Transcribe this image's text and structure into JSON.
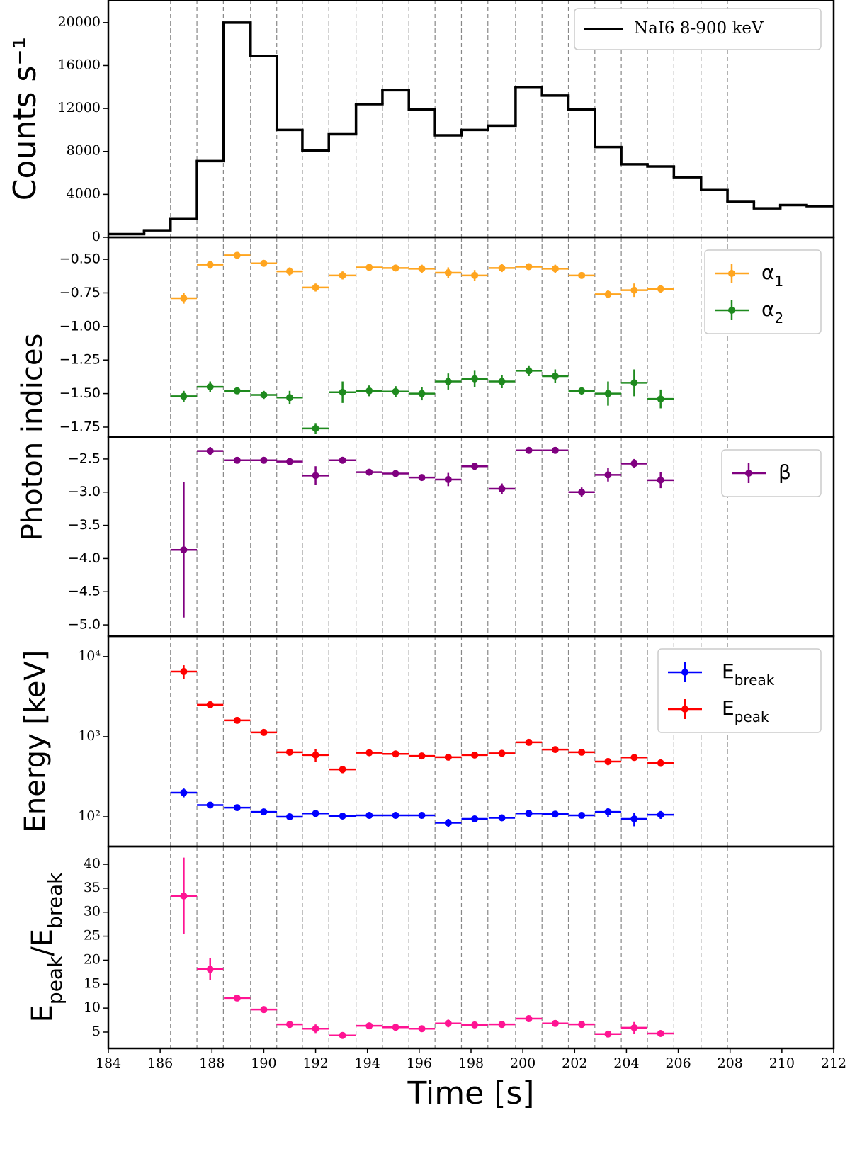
{
  "time_bins": [
    186.4,
    187.42,
    188.44,
    189.49,
    190.5,
    191.49,
    192.51,
    193.56,
    194.58,
    195.6,
    196.61,
    197.63,
    198.65,
    199.72,
    200.74,
    201.76,
    202.78,
    203.8,
    204.81,
    205.83,
    206.88,
    207.9
  ],
  "chart_data": [
    {
      "type": "step",
      "ylabel": "Counts s⁻¹",
      "legend": "upper right",
      "xlim": [
        184,
        212
      ],
      "ylim": [
        0,
        22100
      ],
      "yticks": [
        0,
        4000,
        8000,
        12000,
        16000,
        20000
      ],
      "series": [
        {
          "name": "NaI6 8-900 keV",
          "color": "#000000",
          "bins": [
            184.0,
            185.38,
            186.4,
            187.42,
            188.44,
            189.49,
            190.5,
            191.49,
            192.51,
            193.56,
            194.58,
            195.6,
            196.61,
            197.63,
            198.65,
            199.72,
            200.74,
            201.76,
            202.78,
            203.8,
            204.81,
            205.83,
            206.88,
            207.9,
            208.92,
            209.94,
            210.96,
            212.0
          ],
          "values": [
            300,
            650,
            1700,
            7100,
            20000,
            16900,
            10000,
            8100,
            9600,
            12400,
            13700,
            11900,
            9500,
            10000,
            10400,
            14000,
            13200,
            11900,
            8400,
            6800,
            6600,
            5600,
            4400,
            3300,
            2700,
            3000,
            2900
          ]
        }
      ]
    },
    {
      "type": "errorbar",
      "ylabel": "Photon indices",
      "legend": "upper right",
      "xlim": [
        184,
        212
      ],
      "ylim": [
        -1.824,
        -0.336
      ],
      "yticks": [
        {
          "value": -0.5,
          "label": "−0.50"
        },
        {
          "value": -0.75,
          "label": "−0.75"
        },
        {
          "value": -1.0,
          "label": "−1.00"
        },
        {
          "value": -1.25,
          "label": "−1.25"
        },
        {
          "value": -1.5,
          "label": "−1.50"
        },
        {
          "value": -1.75,
          "label": "−1.75"
        }
      ],
      "x": [
        186.91,
        187.93,
        188.97,
        190.0,
        191.0,
        192.0,
        193.04,
        194.07,
        195.09,
        196.1,
        197.12,
        198.14,
        199.19,
        200.23,
        201.25,
        202.27,
        203.29,
        204.3,
        205.32
      ],
      "xerr": 0.51,
      "series": [
        {
          "name": "α",
          "name_sub": "1",
          "color": "#ffa51f",
          "values": [
            -0.79,
            -0.54,
            -0.47,
            -0.53,
            -0.59,
            -0.71,
            -0.62,
            -0.56,
            -0.565,
            -0.57,
            -0.6,
            -0.62,
            -0.565,
            -0.555,
            -0.57,
            -0.62,
            -0.76,
            -0.73,
            -0.72
          ],
          "errors": [
            0.04,
            0.03,
            0.02,
            0.02,
            0.03,
            0.03,
            0.03,
            0.02,
            0.02,
            0.03,
            0.04,
            0.04,
            0.03,
            0.02,
            0.03,
            0.02,
            0.03,
            0.05,
            0.03
          ]
        },
        {
          "name": "α",
          "name_sub": "2",
          "color": "#1e8a1e",
          "values": [
            -1.52,
            -1.45,
            -1.48,
            -1.51,
            -1.53,
            -1.76,
            -1.49,
            -1.48,
            -1.485,
            -1.5,
            -1.41,
            -1.39,
            -1.41,
            -1.33,
            -1.37,
            -1.48,
            -1.5,
            -1.42,
            -1.54
          ],
          "errors": [
            0.04,
            0.04,
            0.02,
            0.03,
            0.05,
            0.04,
            0.08,
            0.04,
            0.04,
            0.05,
            0.06,
            0.06,
            0.05,
            0.04,
            0.05,
            0.03,
            0.09,
            0.1,
            0.07
          ]
        }
      ]
    },
    {
      "type": "errorbar",
      "legend": "upper right",
      "xlim": [
        184,
        212
      ],
      "ylim": [
        -5.17,
        -2.17
      ],
      "yticks": [
        {
          "value": -2.5,
          "label": "−2.5"
        },
        {
          "value": -3.0,
          "label": "−3.0"
        },
        {
          "value": -3.5,
          "label": "−3.5"
        },
        {
          "value": -4.0,
          "label": "−4.0"
        },
        {
          "value": -4.5,
          "label": "−4.5"
        },
        {
          "value": -5.0,
          "label": "−5.0"
        }
      ],
      "x": [
        186.91,
        187.93,
        188.97,
        190.0,
        191.0,
        192.0,
        193.04,
        194.07,
        195.09,
        196.1,
        197.12,
        198.14,
        199.19,
        200.23,
        201.25,
        202.27,
        203.29,
        204.3,
        205.32
      ],
      "xerr": 0.51,
      "series": [
        {
          "name": "β",
          "color": "#800080",
          "values": [
            -3.87,
            -2.38,
            -2.52,
            -2.52,
            -2.54,
            -2.75,
            -2.52,
            -2.7,
            -2.72,
            -2.78,
            -2.81,
            -2.61,
            -2.95,
            -2.37,
            -2.37,
            -3.0,
            -2.74,
            -2.57,
            -2.82
          ],
          "errors": [
            1.02,
            0.06,
            0.03,
            0.03,
            0.05,
            0.14,
            0.05,
            0.05,
            0.04,
            0.05,
            0.1,
            0.04,
            0.08,
            0.02,
            0.02,
            0.07,
            0.1,
            0.07,
            0.12
          ]
        }
      ]
    },
    {
      "type": "errorbar",
      "ylabel": "Energy [keV]",
      "legend": "upper right",
      "log_scale": true,
      "xlim": [
        184,
        212
      ],
      "ylim": [
        42.5,
        18000
      ],
      "yticks": [
        {
          "value": 100,
          "label": "10²"
        },
        {
          "value": 1000,
          "label": "10³"
        },
        {
          "value": 10000,
          "label": "10⁴"
        }
      ],
      "x": [
        186.91,
        187.93,
        188.97,
        190.0,
        191.0,
        192.0,
        193.04,
        194.07,
        195.09,
        196.1,
        197.12,
        198.14,
        199.19,
        200.23,
        201.25,
        202.27,
        203.29,
        204.3,
        205.32
      ],
      "xerr": 0.51,
      "series": [
        {
          "name": "E",
          "name_sub": "break",
          "color": "#0000ff",
          "values": [
            200,
            140,
            130,
            115,
            100,
            110,
            102,
            104,
            104,
            104,
            84,
            94,
            97,
            110,
            108,
            104,
            115,
            94,
            106
          ],
          "errors": [
            25,
            10,
            8,
            8,
            8,
            8,
            8,
            6,
            6,
            6,
            10,
            9,
            8,
            8,
            8,
            7,
            15,
            18,
            12
          ]
        },
        {
          "name": "E",
          "name_sub": "peak",
          "color": "#ff0000",
          "values": [
            6500,
            2500,
            1600,
            1130,
            640,
            590,
            390,
            630,
            610,
            575,
            555,
            590,
            620,
            850,
            690,
            640,
            490,
            550,
            470
          ],
          "errors": [
            1300,
            200,
            100,
            70,
            60,
            110,
            40,
            40,
            40,
            40,
            50,
            40,
            40,
            50,
            40,
            40,
            50,
            50,
            50
          ]
        }
      ]
    },
    {
      "type": "errorbar",
      "ylabel": [
        "E",
        "peak",
        "/E",
        "break"
      ],
      "xlabel": "Time [s]",
      "xlim": [
        184,
        212
      ],
      "xticks": [
        184,
        186,
        188,
        190,
        192,
        194,
        196,
        198,
        200,
        202,
        204,
        206,
        208,
        210,
        212
      ],
      "ylim": [
        1.6,
        43.7
      ],
      "yticks": [
        5,
        10,
        15,
        20,
        25,
        30,
        35,
        40
      ],
      "x": [
        186.91,
        187.93,
        188.97,
        190.0,
        191.0,
        192.0,
        193.04,
        194.07,
        195.09,
        196.1,
        197.12,
        198.14,
        199.19,
        200.23,
        201.25,
        202.27,
        203.29,
        204.3,
        205.32
      ],
      "xerr": 0.51,
      "series": [
        {
          "color": "#ff1493",
          "values": [
            33.4,
            18.1,
            12.1,
            9.7,
            6.6,
            5.7,
            4.3,
            6.3,
            6.0,
            5.7,
            6.8,
            6.5,
            6.6,
            7.8,
            6.8,
            6.6,
            4.6,
            5.9,
            4.7
          ],
          "errors": [
            8.0,
            2.3,
            0.6,
            0.6,
            0.5,
            0.9,
            0.4,
            0.5,
            0.5,
            0.5,
            0.8,
            0.5,
            0.5,
            0.5,
            0.5,
            0.5,
            0.6,
            1.2,
            0.5
          ]
        }
      ]
    }
  ]
}
